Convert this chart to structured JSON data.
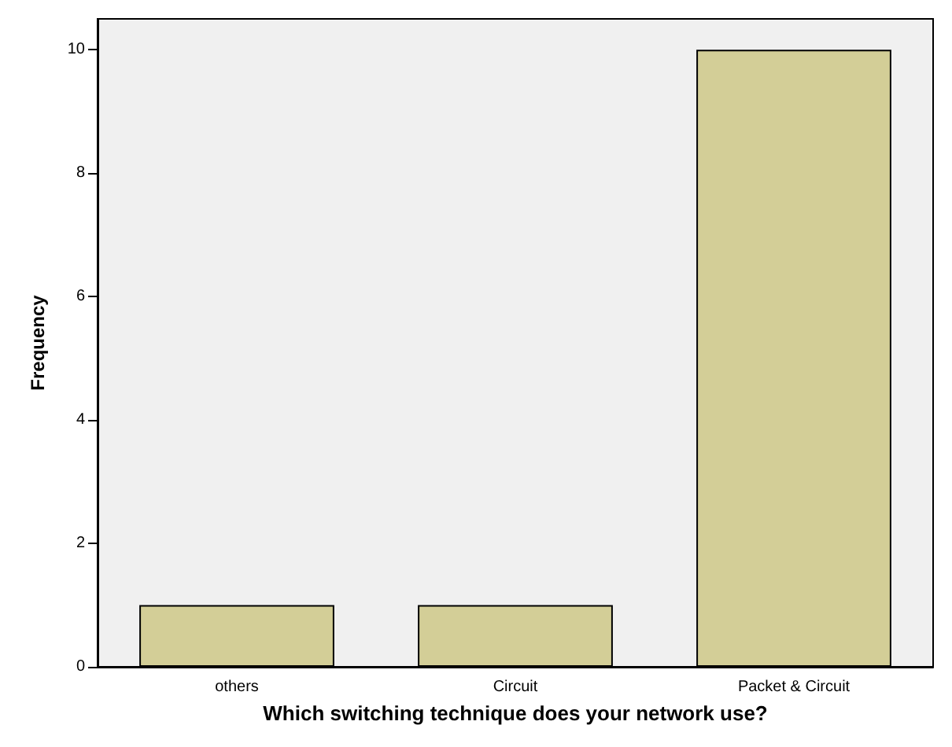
{
  "chart_data": {
    "type": "bar",
    "xlabel": "Which switching technique does your network use?",
    "ylabel": "Frequency",
    "categories": [
      "others",
      "Circuit",
      "Packet & Circuit"
    ],
    "values": [
      1,
      1,
      10
    ],
    "color": "#d3ce97",
    "ylim": [
      0,
      10.5
    ],
    "yticks": [
      0,
      2,
      4,
      6,
      8,
      10
    ],
    "grid": false
  }
}
